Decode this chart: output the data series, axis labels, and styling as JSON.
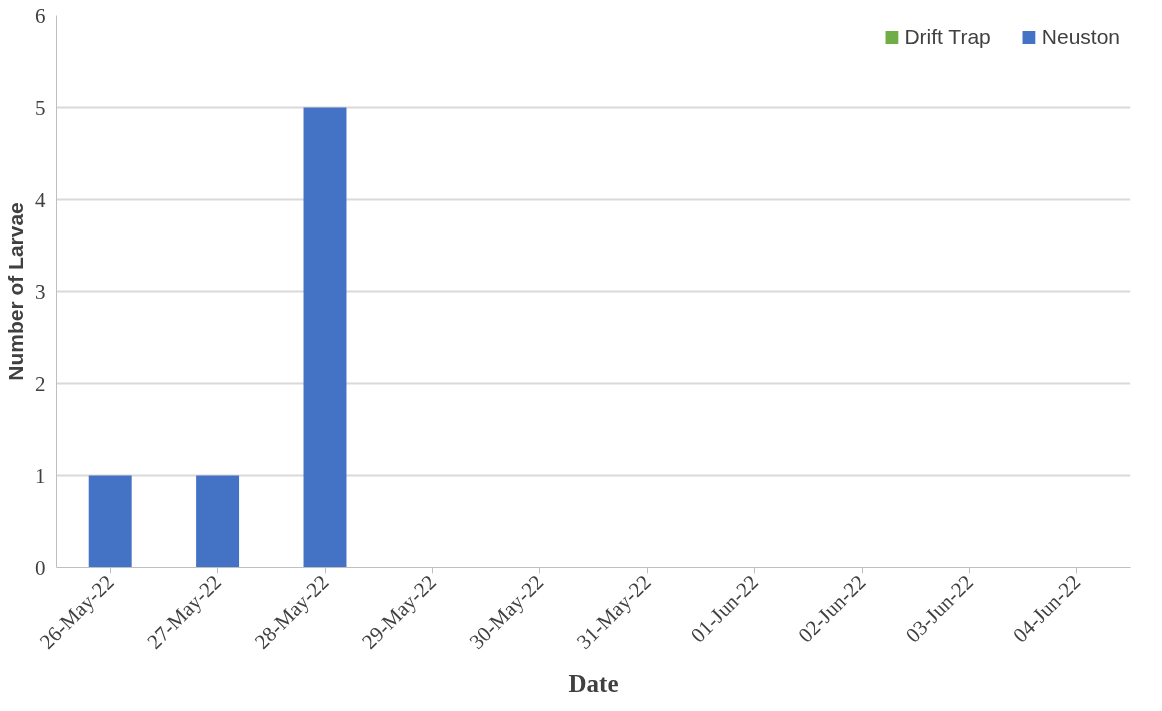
{
  "chart_data": {
    "type": "bar",
    "xlabel": "Date",
    "ylabel": "Number of Larvae",
    "categories": [
      "26-May-22",
      "27-May-22",
      "28-May-22",
      "29-May-22",
      "30-May-22",
      "31-May-22",
      "01-Jun-22",
      "02-Jun-22",
      "03-Jun-22",
      "04-Jun-22"
    ],
    "series": [
      {
        "name": "Drift Trap",
        "color": "#70ad47",
        "values": [
          0,
          0,
          0,
          0,
          0,
          0,
          0,
          0,
          0,
          0
        ]
      },
      {
        "name": "Neuston",
        "color": "#4472c4",
        "values": [
          1,
          1,
          5,
          0,
          0,
          0,
          0,
          0,
          0,
          0
        ]
      }
    ],
    "ylim": [
      0,
      6
    ],
    "yticks": [
      0,
      1,
      2,
      3,
      4,
      5,
      6
    ],
    "grid": "y",
    "legend": "top right"
  }
}
